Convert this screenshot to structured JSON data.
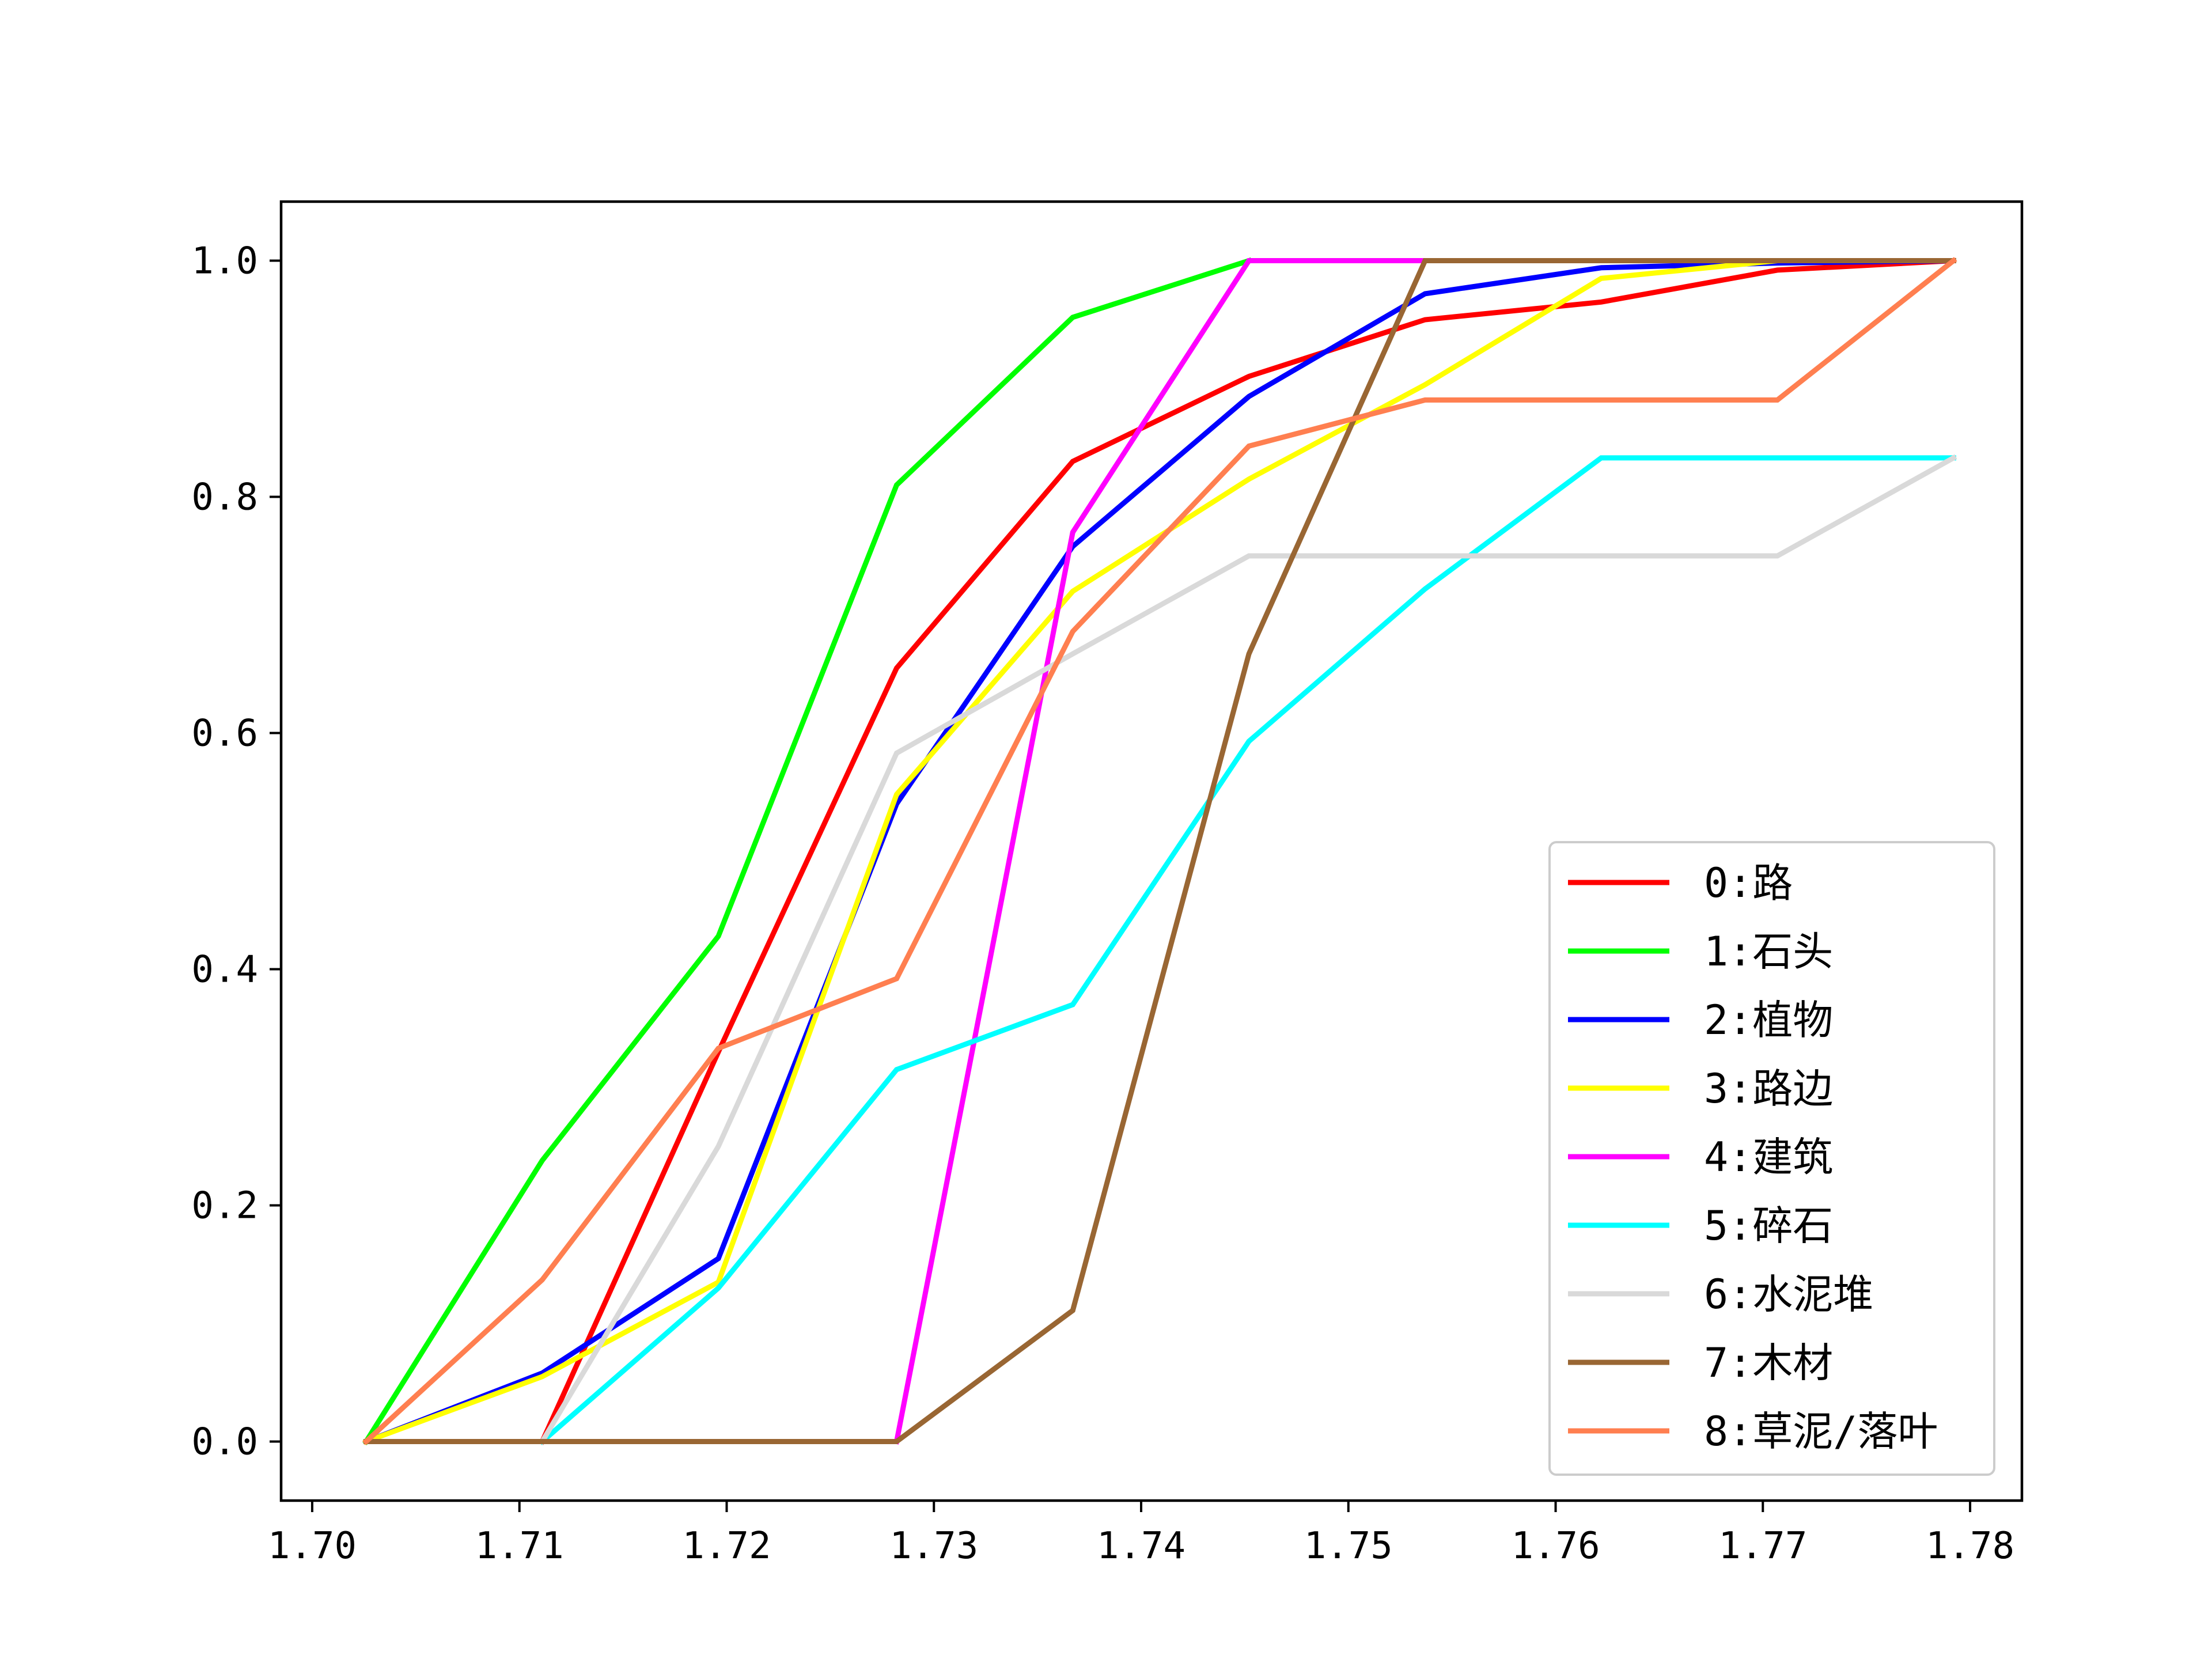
{
  "chart_data": {
    "type": "line",
    "title": "",
    "xlabel": "",
    "ylabel": "",
    "xlim": [
      1.6985,
      1.7825
    ],
    "ylim": [
      -0.05,
      1.05
    ],
    "x_ticks": [
      "1.70",
      "1.71",
      "1.72",
      "1.73",
      "1.74",
      "1.75",
      "1.76",
      "1.77",
      "1.78"
    ],
    "y_ticks": [
      "0.0",
      "0.2",
      "0.4",
      "0.6",
      "0.8",
      "1.0"
    ],
    "grid": false,
    "legend_position": "lower-right",
    "series": [
      {
        "name": "0:路",
        "color": "#ff0000",
        "x": [
          1.7111,
          1.7196,
          1.7282,
          1.7367,
          1.7452,
          1.7537,
          1.7622,
          1.7707,
          1.7792
        ],
        "y": [
          0.0,
          0.33,
          0.655,
          0.83,
          0.902,
          0.95,
          0.965,
          0.992,
          1.0
        ]
      },
      {
        "name": "1:石头",
        "color": "#00ff00",
        "x": [
          1.7026,
          1.7111,
          1.7196,
          1.7282,
          1.7367,
          1.7452
        ],
        "y": [
          0.0,
          0.238,
          0.428,
          0.81,
          0.952,
          1.0
        ]
      },
      {
        "name": "2:植物",
        "color": "#0000ff",
        "x": [
          1.7026,
          1.7111,
          1.7196,
          1.7282,
          1.7367,
          1.7452,
          1.7537,
          1.7622,
          1.7707,
          1.7792
        ],
        "y": [
          0.0,
          0.058,
          0.155,
          0.54,
          0.758,
          0.885,
          0.972,
          0.994,
          0.998,
          1.0
        ]
      },
      {
        "name": "3:路边",
        "color": "#ffff00",
        "x": [
          1.7026,
          1.7111,
          1.7196,
          1.7282,
          1.7367,
          1.7452,
          1.7537,
          1.7622,
          1.7707,
          1.7792
        ],
        "y": [
          0.0,
          0.055,
          0.135,
          0.548,
          0.72,
          0.815,
          0.895,
          0.985,
          1.0,
          1.0
        ]
      },
      {
        "name": "4:建筑",
        "color": "#ff00ff",
        "x": [
          1.7282,
          1.7367,
          1.7452,
          1.7537
        ],
        "y": [
          0.0,
          0.77,
          1.0,
          1.0
        ]
      },
      {
        "name": "5:碎石",
        "color": "#00ffff",
        "x": [
          1.7111,
          1.7196,
          1.7282,
          1.7367,
          1.7452,
          1.7537,
          1.7622,
          1.7707,
          1.7792
        ],
        "y": [
          0.0,
          0.13,
          0.315,
          0.37,
          0.593,
          0.722,
          0.833,
          0.833,
          0.833
        ]
      },
      {
        "name": "6:水泥堆",
        "color": "#d9d9d9",
        "x": [
          1.7111,
          1.7196,
          1.7282,
          1.7367,
          1.7452,
          1.7537,
          1.7622,
          1.7707,
          1.7792
        ],
        "y": [
          0.0,
          0.25,
          0.583,
          0.667,
          0.75,
          0.75,
          0.75,
          0.75,
          0.833
        ]
      },
      {
        "name": "7:木材",
        "color": "#996633",
        "x": [
          1.7026,
          1.7111,
          1.7196,
          1.7282,
          1.7367,
          1.7452,
          1.7537,
          1.7622,
          1.7707,
          1.7792
        ],
        "y": [
          0.0,
          0.0,
          0.0,
          0.0,
          0.111,
          0.667,
          1.0,
          1.0,
          1.0,
          1.0
        ]
      },
      {
        "name": "8:草泥/落叶",
        "color": "#ff7f50",
        "x": [
          1.7026,
          1.7111,
          1.7196,
          1.7282,
          1.7367,
          1.7452,
          1.7537,
          1.7622,
          1.7707,
          1.7792
        ],
        "y": [
          0.0,
          0.137,
          0.333,
          0.392,
          0.686,
          0.843,
          0.882,
          0.882,
          0.882,
          1.0
        ]
      }
    ]
  }
}
